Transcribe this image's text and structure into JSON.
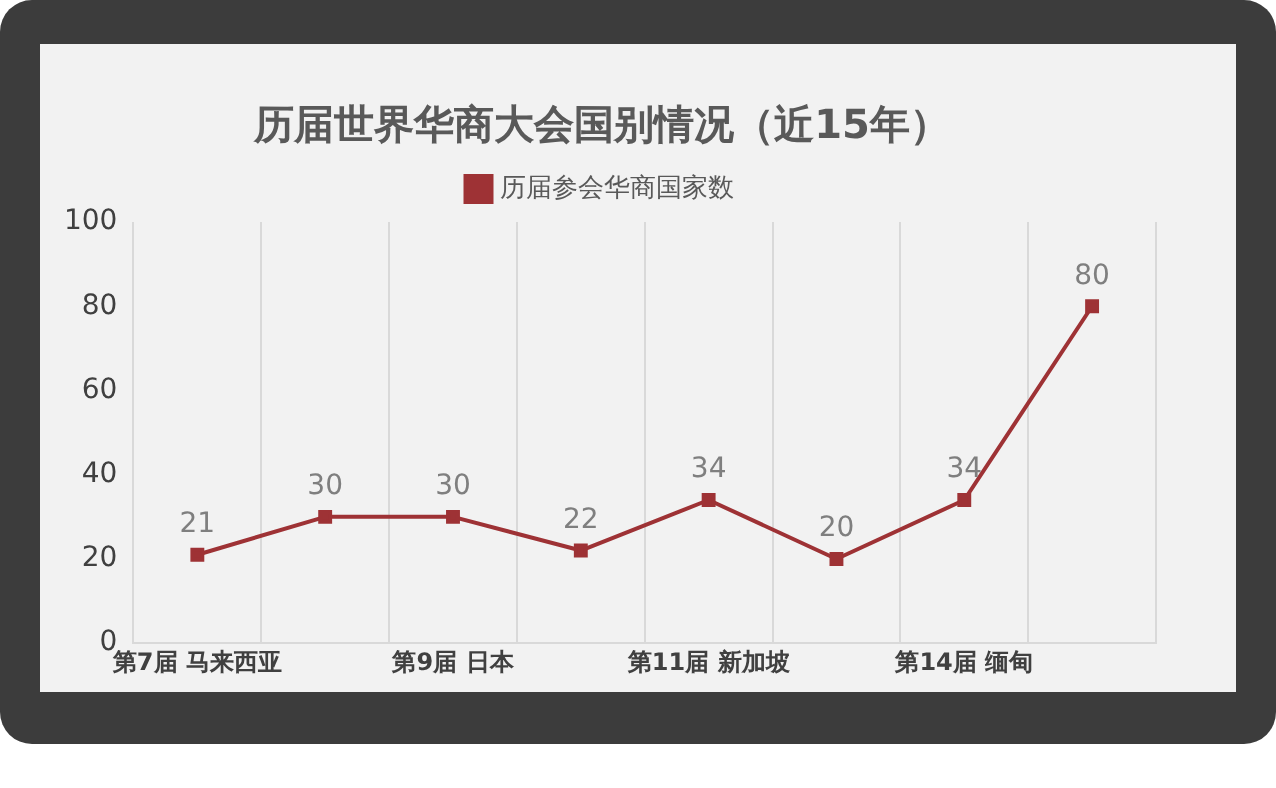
{
  "chart_data": {
    "type": "line",
    "title": "历届世界华商大会国别情况（近15年）",
    "categories": [
      "第7届 马来西亚",
      null,
      "第9届 日本",
      null,
      "第11届 新加坡",
      null,
      "第14届 缅甸",
      null
    ],
    "series": [
      {
        "name": "历届参会华商国家数",
        "color": "#9e3235",
        "values": [
          21,
          30,
          30,
          22,
          34,
          20,
          34,
          80
        ]
      }
    ],
    "ylim": [
      0,
      100
    ],
    "yticks": [
      0,
      20,
      40,
      60,
      80,
      100
    ],
    "grid": "x",
    "legend": "top",
    "marker": "square",
    "line_style": "solid",
    "data_labels": true
  }
}
